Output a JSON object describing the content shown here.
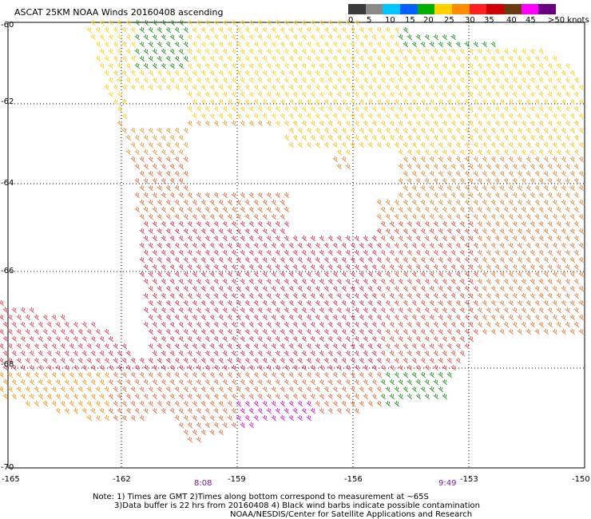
{
  "title": "ASCAT 25KM NOAA Winds 20160408 ascending",
  "colorbar": {
    "labels": [
      "0",
      "5",
      "10",
      "15",
      "20",
      "25",
      "30",
      "35",
      "40",
      "45",
      ">50 knots"
    ],
    "colors": [
      "#3a3a3a",
      "#8a8a8a",
      "#00c8ff",
      "#0060ff",
      "#00b000",
      "#ffd000",
      "#ff8c00",
      "#ff2020",
      "#d00000",
      "#6a3a10",
      "#ff00ff",
      "#6a0080"
    ]
  },
  "lat_labels": [
    "-60",
    "-62",
    "-64",
    "-66",
    "-68",
    "-70"
  ],
  "lon_labels": [
    "-165",
    "-162",
    "-159",
    "-156",
    "-153",
    "-150"
  ],
  "time_labels": [
    "8:08",
    "9:49"
  ],
  "notes": [
    "Note: 1) Times are GMT 2)Times along bottom correspond to measurement at ~65S",
    "3)Data buffer is 22 hrs from 20160408 4) Black wind barbs indicate possible contamination",
    "NOAA/NESDIS/Center for Satellite Applications and Research"
  ]
}
